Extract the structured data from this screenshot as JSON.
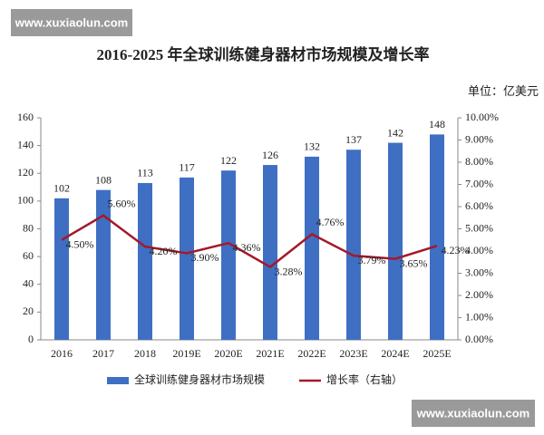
{
  "chart_data": {
    "type": "bar",
    "title": "2016-2025 年全球训练健身器材市场规模及增长率",
    "unit": "单位：亿美元",
    "watermarks": [
      "www.xuxiaolun.com",
      "www.xuxiaolun.com"
    ],
    "categories": [
      "2016",
      "2017",
      "2018",
      "2019E",
      "2020E",
      "2021E",
      "2022E",
      "2023E",
      "2024E",
      "2025E"
    ],
    "series": [
      {
        "name": "全球训练健身器材市场规模",
        "color": "#3f6fc2",
        "type": "bar",
        "axis": "y",
        "values": [
          102,
          108,
          113,
          117,
          122,
          126,
          132,
          137,
          142,
          148
        ]
      },
      {
        "name": "增长率（右轴）",
        "color": "#a3192b",
        "type": "line",
        "axis": "y2",
        "values": [
          4.5,
          5.6,
          4.2,
          3.9,
          4.36,
          3.28,
          4.76,
          3.79,
          3.65,
          4.23
        ],
        "value_labels": [
          "4.50%",
          "5.60%",
          "4.20%",
          "3.90%",
          "4.36%",
          "3.28%",
          "4.76%",
          "3.79%",
          "3.65%",
          "4.23%"
        ]
      }
    ],
    "ylim": [
      0,
      160
    ],
    "yticks": [
      0,
      20,
      40,
      60,
      80,
      100,
      120,
      140,
      160
    ],
    "y2lim": [
      0,
      10
    ],
    "y2ticks": [
      {
        "value": 0,
        "label": "0.00%"
      },
      {
        "value": 1,
        "label": "1.00%"
      },
      {
        "value": 2,
        "label": "2.00%"
      },
      {
        "value": 3,
        "label": "3.00%"
      },
      {
        "value": 4,
        "label": "4.00%"
      },
      {
        "value": 5,
        "label": "5.00%"
      },
      {
        "value": 6,
        "label": "6.00%"
      },
      {
        "value": 7,
        "label": "7.00%"
      },
      {
        "value": 8,
        "label": "8.00%"
      },
      {
        "value": 9,
        "label": "9.00%"
      },
      {
        "value": 10,
        "label": "10.00%"
      }
    ]
  }
}
